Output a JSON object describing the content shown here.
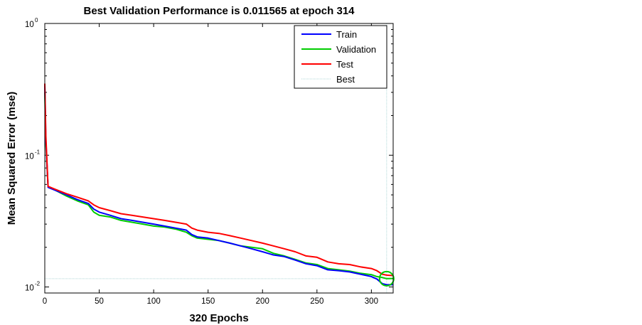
{
  "chart_data": {
    "type": "line",
    "title": "Best Validation Performance is 0.011565 at epoch 314",
    "xlabel": "320 Epochs",
    "ylabel": "Mean Squared Error  (mse)",
    "xlim": [
      0,
      320
    ],
    "ylim": [
      0.009,
      1
    ],
    "yscale": "log",
    "x_ticks": [
      0,
      50,
      100,
      150,
      200,
      250,
      300
    ],
    "y_ticks": [
      {
        "value": 0.01,
        "base": "10",
        "exp": "-2"
      },
      {
        "value": 0.1,
        "base": "10",
        "exp": "-1"
      },
      {
        "value": 1,
        "base": "10",
        "exp": "0"
      }
    ],
    "legend_position": "top-right",
    "best": {
      "epoch": 314,
      "value": 0.011565
    },
    "series": [
      {
        "name": "Train",
        "color": "#0000ff",
        "x": [
          0,
          1,
          3,
          10,
          20,
          30,
          40,
          45,
          50,
          60,
          70,
          80,
          90,
          100,
          110,
          120,
          130,
          135,
          140,
          150,
          160,
          170,
          180,
          190,
          200,
          210,
          220,
          230,
          240,
          250,
          260,
          270,
          280,
          290,
          300,
          305,
          310,
          314,
          320
        ],
        "y": [
          0.34,
          0.13,
          0.057,
          0.054,
          0.05,
          0.046,
          0.043,
          0.039,
          0.037,
          0.035,
          0.033,
          0.032,
          0.031,
          0.03,
          0.029,
          0.028,
          0.027,
          0.025,
          0.024,
          0.0235,
          0.0225,
          0.0215,
          0.0205,
          0.0195,
          0.0185,
          0.0175,
          0.017,
          0.016,
          0.015,
          0.0145,
          0.0135,
          0.0133,
          0.013,
          0.0125,
          0.012,
          0.0115,
          0.0106,
          0.0104,
          0.0104
        ]
      },
      {
        "name": "Validation",
        "color": "#00cc00",
        "x": [
          0,
          1,
          3,
          10,
          20,
          30,
          40,
          45,
          50,
          60,
          70,
          80,
          90,
          100,
          110,
          120,
          130,
          135,
          140,
          150,
          160,
          170,
          180,
          190,
          200,
          210,
          220,
          230,
          240,
          250,
          260,
          270,
          280,
          290,
          300,
          305,
          310,
          314,
          320
        ],
        "y": [
          0.3,
          0.12,
          0.058,
          0.054,
          0.049,
          0.045,
          0.042,
          0.037,
          0.035,
          0.034,
          0.032,
          0.031,
          0.03,
          0.029,
          0.0285,
          0.0275,
          0.026,
          0.0245,
          0.0235,
          0.023,
          0.0225,
          0.0215,
          0.0205,
          0.02,
          0.0195,
          0.018,
          0.0172,
          0.0162,
          0.0152,
          0.0148,
          0.0138,
          0.0135,
          0.0132,
          0.0127,
          0.0124,
          0.012,
          0.0118,
          0.011565,
          0.0116
        ]
      },
      {
        "name": "Test",
        "color": "#ff0000",
        "x": [
          0,
          1,
          3,
          10,
          20,
          30,
          40,
          45,
          50,
          60,
          70,
          80,
          90,
          100,
          110,
          120,
          130,
          135,
          140,
          150,
          160,
          170,
          180,
          190,
          200,
          210,
          220,
          230,
          240,
          250,
          260,
          270,
          280,
          290,
          300,
          305,
          310,
          314,
          320
        ],
        "y": [
          0.35,
          0.14,
          0.058,
          0.055,
          0.051,
          0.048,
          0.045,
          0.042,
          0.04,
          0.038,
          0.036,
          0.035,
          0.034,
          0.033,
          0.032,
          0.031,
          0.03,
          0.028,
          0.027,
          0.026,
          0.0255,
          0.0245,
          0.0235,
          0.0225,
          0.0215,
          0.0205,
          0.0195,
          0.0185,
          0.0172,
          0.0168,
          0.0155,
          0.015,
          0.0148,
          0.0142,
          0.0138,
          0.0133,
          0.0125,
          0.0123,
          0.0122
        ]
      },
      {
        "name": "Best",
        "color": "#b0d8d8",
        "style": "dotted"
      }
    ]
  }
}
